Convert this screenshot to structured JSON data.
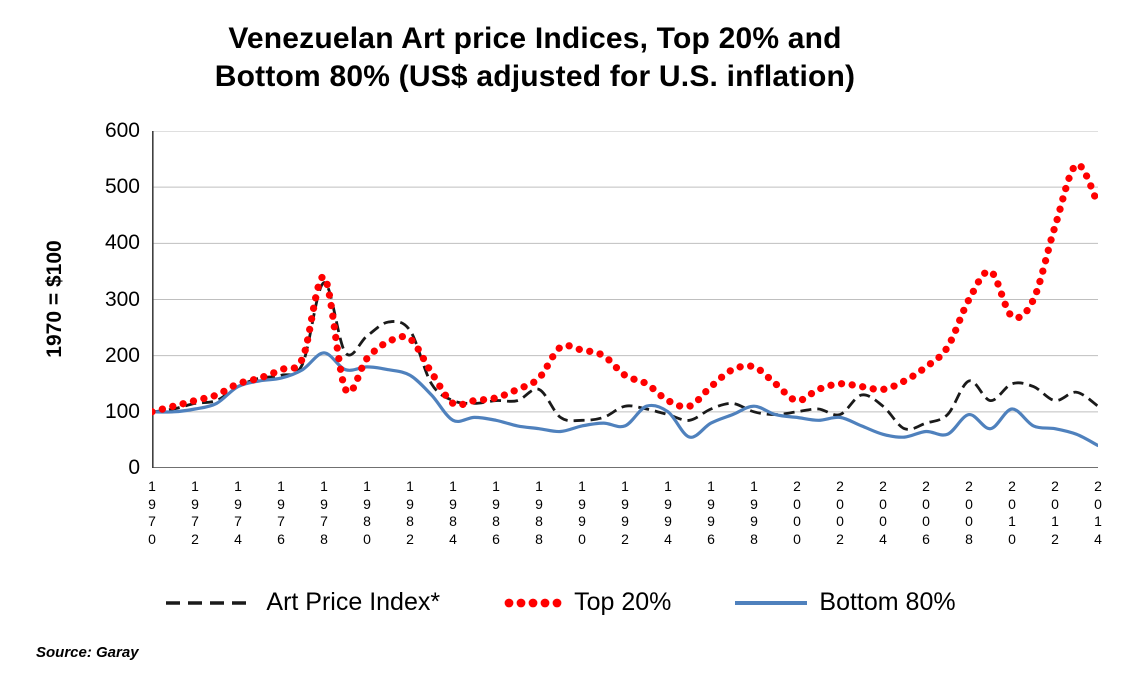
{
  "chart_data": {
    "type": "line",
    "title_line1": "Venezuelan Art price Indices, Top 20% and",
    "title_line2": "Bottom 80% (US$ adjusted for U.S. inflation)",
    "ylabel": "1970 = $100",
    "source": "Source: Garay",
    "xlim": [
      1970,
      2014
    ],
    "x_tick_step": 2,
    "ylim": [
      0,
      600
    ],
    "y_tick_step": 100,
    "grid": true,
    "legend_position": "bottom",
    "background": "#ffffff",
    "grid_color": "#bfbfbf",
    "axis_color": "#404040",
    "x": [
      1970,
      1971,
      1972,
      1973,
      1974,
      1975,
      1976,
      1977,
      1978,
      1979,
      1980,
      1981,
      1982,
      1983,
      1984,
      1985,
      1986,
      1987,
      1988,
      1989,
      1990,
      1991,
      1992,
      1993,
      1994,
      1995,
      1996,
      1997,
      1998,
      1999,
      2000,
      2001,
      2002,
      2003,
      2004,
      2005,
      2006,
      2007,
      2008,
      2009,
      2010,
      2011,
      2012,
      2013,
      2014
    ],
    "series": [
      {
        "name": "Art Price Index*",
        "style": "dashed",
        "color": "#1a1a1a",
        "values": [
          100,
          105,
          115,
          120,
          145,
          160,
          165,
          185,
          330,
          205,
          235,
          260,
          245,
          150,
          120,
          115,
          120,
          120,
          140,
          90,
          85,
          90,
          110,
          105,
          95,
          85,
          105,
          115,
          100,
          95,
          100,
          105,
          95,
          130,
          110,
          70,
          80,
          95,
          155,
          120,
          150,
          145,
          120,
          135,
          110
        ]
      },
      {
        "name": "Top 20%",
        "style": "dotted",
        "color": "#ff0000",
        "values": [
          100,
          110,
          120,
          130,
          150,
          160,
          175,
          195,
          340,
          140,
          195,
          225,
          230,
          170,
          115,
          120,
          125,
          140,
          160,
          215,
          210,
          200,
          165,
          150,
          120,
          110,
          145,
          175,
          180,
          150,
          120,
          140,
          150,
          145,
          140,
          155,
          180,
          215,
          300,
          350,
          270,
          300,
          430,
          540,
          470
        ]
      },
      {
        "name": "Bottom 80%",
        "style": "solid",
        "color": "#4f81bd",
        "values": [
          100,
          100,
          105,
          115,
          145,
          155,
          160,
          175,
          205,
          175,
          180,
          175,
          165,
          130,
          85,
          90,
          85,
          75,
          70,
          65,
          75,
          80,
          75,
          110,
          100,
          55,
          80,
          95,
          110,
          95,
          90,
          85,
          90,
          75,
          60,
          55,
          65,
          60,
          95,
          70,
          105,
          75,
          70,
          60,
          40
        ]
      }
    ]
  }
}
